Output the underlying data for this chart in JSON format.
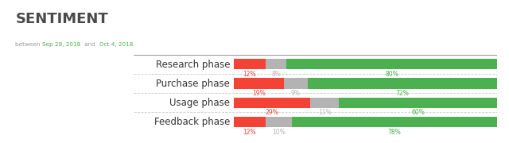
{
  "title": "SENTIMENT",
  "subtitle_plain": "between ",
  "subtitle_date1": "Sep 28, 2018",
  "subtitle_mid": " and ",
  "subtitle_date2": "Oct 4, 2018",
  "categories": [
    "Research phase",
    "Purchase phase",
    "Usage phase",
    "Feedback phase"
  ],
  "negative": [
    12,
    19,
    29,
    12
  ],
  "neutral": [
    8,
    9,
    11,
    10
  ],
  "positive": [
    80,
    72,
    60,
    78
  ],
  "color_negative": "#f44336",
  "color_neutral": "#b3b3b3",
  "color_positive": "#4caf50",
  "color_title": "#4a4a4a",
  "color_subtitle_text": "#999999",
  "color_subtitle_date": "#4caf50",
  "color_category": "#333333",
  "color_separator_top": "#999999",
  "color_separator_dash": "#cccccc",
  "bar_height": 0.55,
  "background": "#ffffff",
  "label_fontsize": 5.5,
  "category_fontsize": 8.5,
  "title_fontsize": 13
}
